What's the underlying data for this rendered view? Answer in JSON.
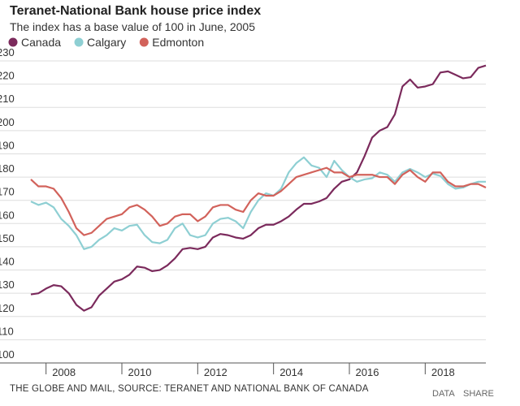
{
  "chart_data": {
    "type": "line",
    "title": "Teranet-National Bank house price index",
    "subtitle": "The index has a base value of 100 in June, 2005",
    "source": "THE GLOBE AND MAIL, SOURCE: TERANET AND NATIONAL BANK OF CANADA",
    "links": [
      "DATA",
      "SHARE"
    ],
    "x": [
      2007.6,
      2007.8,
      2008.0,
      2008.2,
      2008.4,
      2008.6,
      2008.8,
      2009.0,
      2009.2,
      2009.4,
      2009.6,
      2009.8,
      2010.0,
      2010.2,
      2010.4,
      2010.6,
      2010.8,
      2011.0,
      2011.2,
      2011.4,
      2011.6,
      2011.8,
      2012.0,
      2012.2,
      2012.4,
      2012.6,
      2012.8,
      2013.0,
      2013.2,
      2013.4,
      2013.6,
      2013.8,
      2014.0,
      2014.2,
      2014.4,
      2014.6,
      2014.8,
      2015.0,
      2015.2,
      2015.4,
      2015.6,
      2015.8,
      2016.0,
      2016.2,
      2016.4,
      2016.6,
      2016.8,
      2017.0,
      2017.2,
      2017.4,
      2017.6,
      2017.8,
      2018.0,
      2018.2,
      2018.4,
      2018.6,
      2018.8,
      2019.0,
      2019.2,
      2019.4,
      2019.6
    ],
    "series": [
      {
        "name": "Canada",
        "color": "#7b2a5c",
        "values": [
          129.5,
          130,
          132,
          133.5,
          133,
          130,
          125,
          122.5,
          124,
          129,
          132,
          135,
          136,
          138,
          141.5,
          141,
          139.5,
          140,
          142,
          145,
          149,
          149.5,
          149,
          150,
          154,
          155.5,
          155,
          154,
          153.5,
          155,
          158,
          159.5,
          159.5,
          161,
          163,
          166,
          168.5,
          168.5,
          169.5,
          171,
          175,
          178,
          179,
          182,
          189,
          197,
          200,
          201.5,
          207,
          219,
          222,
          218.5,
          219,
          220,
          225,
          225.5,
          224,
          222.5,
          223,
          227,
          228
        ]
      },
      {
        "name": "Calgary",
        "color": "#8ecfd3",
        "values": [
          169.5,
          168,
          169,
          167,
          162,
          159,
          155,
          149,
          150,
          153,
          155,
          158,
          157,
          159,
          159.5,
          155,
          152,
          151.5,
          153,
          158,
          160,
          155,
          154,
          155,
          160,
          162,
          162.5,
          161,
          158,
          165,
          170,
          173,
          172,
          175,
          182,
          186,
          188.5,
          185,
          184,
          180,
          187,
          183,
          180,
          178,
          179,
          179.5,
          182,
          181,
          178,
          182,
          183.5,
          182,
          180,
          181.5,
          180.5,
          177,
          175,
          175.5,
          177,
          178,
          178
        ]
      },
      {
        "name": "Edmonton",
        "color": "#d2625b",
        "values": [
          179,
          176,
          176,
          175,
          171,
          165,
          158,
          155,
          156,
          159,
          162,
          163,
          164,
          167,
          168,
          166,
          163,
          159,
          160,
          163,
          164,
          164,
          161,
          163,
          167,
          168,
          168,
          166,
          165,
          170,
          173,
          172,
          172,
          174,
          177,
          180,
          181,
          182,
          183,
          184,
          182,
          182,
          180,
          181,
          181,
          181,
          180,
          180,
          177,
          181,
          183,
          180,
          178,
          182,
          182,
          178,
          176,
          176,
          177,
          177,
          175.5
        ]
      }
    ],
    "xlim": [
      2007.6,
      2019.6
    ],
    "xticks": [
      2008,
      2010,
      2012,
      2014,
      2016,
      2018
    ],
    "ylim": [
      100,
      230
    ],
    "yticks": [
      100,
      110,
      120,
      130,
      140,
      150,
      160,
      170,
      180,
      190,
      200,
      210,
      220,
      230
    ],
    "grid": true
  }
}
